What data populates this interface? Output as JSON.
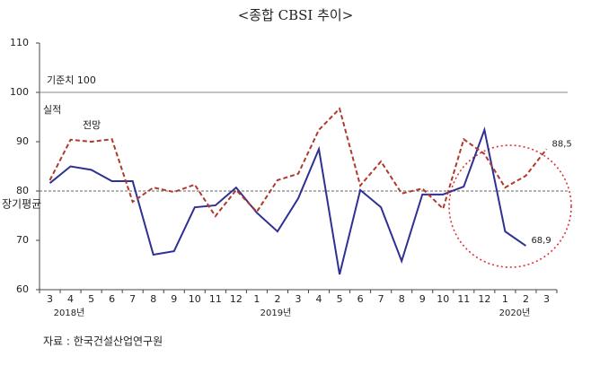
{
  "chart_data": {
    "type": "line",
    "title": "<종합 CBSI 추이>",
    "categories": [
      "3",
      "4",
      "5",
      "6",
      "7",
      "8",
      "9",
      "10",
      "11",
      "12",
      "1",
      "2",
      "3",
      "4",
      "5",
      "6",
      "7",
      "8",
      "9",
      "10",
      "11",
      "12",
      "1",
      "2",
      "3"
    ],
    "year_labels": [
      "2018년",
      "2019년",
      "2020년"
    ],
    "series": [
      {
        "name": "실적",
        "color": "#2e3192",
        "dash": false,
        "values": [
          81.6,
          85.0,
          84.3,
          82.0,
          82.0,
          67.1,
          67.8,
          76.7,
          77.1,
          80.7,
          75.6,
          71.8,
          78.5,
          88.5,
          63.1,
          80.2,
          76.7,
          65.8,
          79.3,
          79.3,
          80.9,
          92.4,
          71.8,
          68.9,
          null
        ],
        "value_labels": [
          null,
          null,
          null,
          null,
          null,
          null,
          null,
          null,
          null,
          null,
          null,
          null,
          null,
          null,
          null,
          null,
          null,
          null,
          null,
          null,
          null,
          null,
          null,
          "68,9",
          null
        ]
      },
      {
        "name": "전망",
        "color": "#b0392e",
        "dash": true,
        "values": [
          82.2,
          90.4,
          90.0,
          90.5,
          77.8,
          80.7,
          79.8,
          81.3,
          74.9,
          80.2,
          75.8,
          82.2,
          83.5,
          92.4,
          96.7,
          81.1,
          86.0,
          79.5,
          80.5,
          76.4,
          90.5,
          87.5,
          80.7,
          83.1,
          88.5
        ],
        "value_labels": [
          null,
          null,
          null,
          null,
          null,
          null,
          null,
          null,
          null,
          null,
          null,
          null,
          null,
          null,
          null,
          null,
          null,
          null,
          null,
          null,
          null,
          null,
          null,
          null,
          "88,5"
        ]
      }
    ],
    "reference_lines": [
      {
        "value": 100,
        "label": "기준치 100"
      },
      {
        "value": 80,
        "label": "장기평균"
      }
    ],
    "ylim": [
      60,
      110
    ],
    "yticks": [
      60,
      70,
      80,
      90,
      100,
      110
    ],
    "source": "자료 : 한국건설산업연구원"
  }
}
